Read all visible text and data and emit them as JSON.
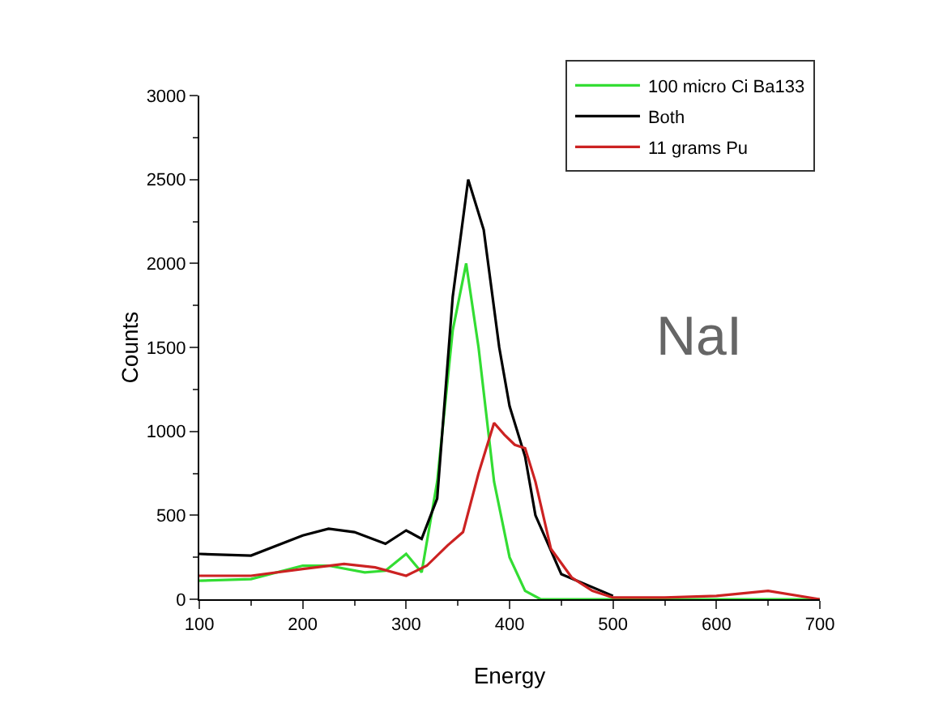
{
  "chart_data": {
    "type": "line",
    "xlabel": "Energy",
    "ylabel": "Counts",
    "xlim": [
      100,
      700
    ],
    "ylim": [
      0,
      3000
    ],
    "xticks": [
      100,
      200,
      300,
      400,
      500,
      600,
      700
    ],
    "yticks": [
      0,
      500,
      1000,
      1500,
      2000,
      2500,
      3000
    ],
    "grid": false,
    "legend": "top right",
    "marker": "none",
    "line_style": "solid",
    "annotations": [
      "NaI"
    ],
    "series": [
      {
        "name": "100 micro Ci Ba133",
        "color": "#33dd33",
        "x": [
          100,
          150,
          200,
          225,
          260,
          280,
          300,
          315,
          330,
          345,
          358,
          370,
          385,
          400,
          415,
          430,
          500,
          600,
          700
        ],
        "values": [
          110,
          120,
          200,
          200,
          160,
          170,
          270,
          160,
          700,
          1600,
          2000,
          1500,
          700,
          250,
          50,
          0,
          0,
          0,
          0
        ]
      },
      {
        "name": "Both",
        "color": "#000000",
        "x": [
          100,
          150,
          200,
          225,
          250,
          280,
          300,
          315,
          330,
          345,
          360,
          375,
          390,
          400,
          415,
          425,
          450,
          500
        ],
        "values": [
          270,
          260,
          380,
          420,
          400,
          330,
          410,
          360,
          600,
          1800,
          2500,
          2200,
          1500,
          1150,
          850,
          500,
          150,
          20
        ]
      },
      {
        "name": "11 grams Pu",
        "color": "#cc2222",
        "x": [
          100,
          150,
          200,
          240,
          270,
          300,
          320,
          340,
          355,
          370,
          385,
          395,
          405,
          415,
          425,
          440,
          460,
          480,
          500,
          550,
          600,
          650,
          700
        ],
        "values": [
          140,
          140,
          180,
          210,
          190,
          140,
          200,
          320,
          400,
          750,
          1050,
          980,
          920,
          900,
          700,
          300,
          130,
          50,
          10,
          10,
          20,
          50,
          0
        ]
      }
    ]
  }
}
